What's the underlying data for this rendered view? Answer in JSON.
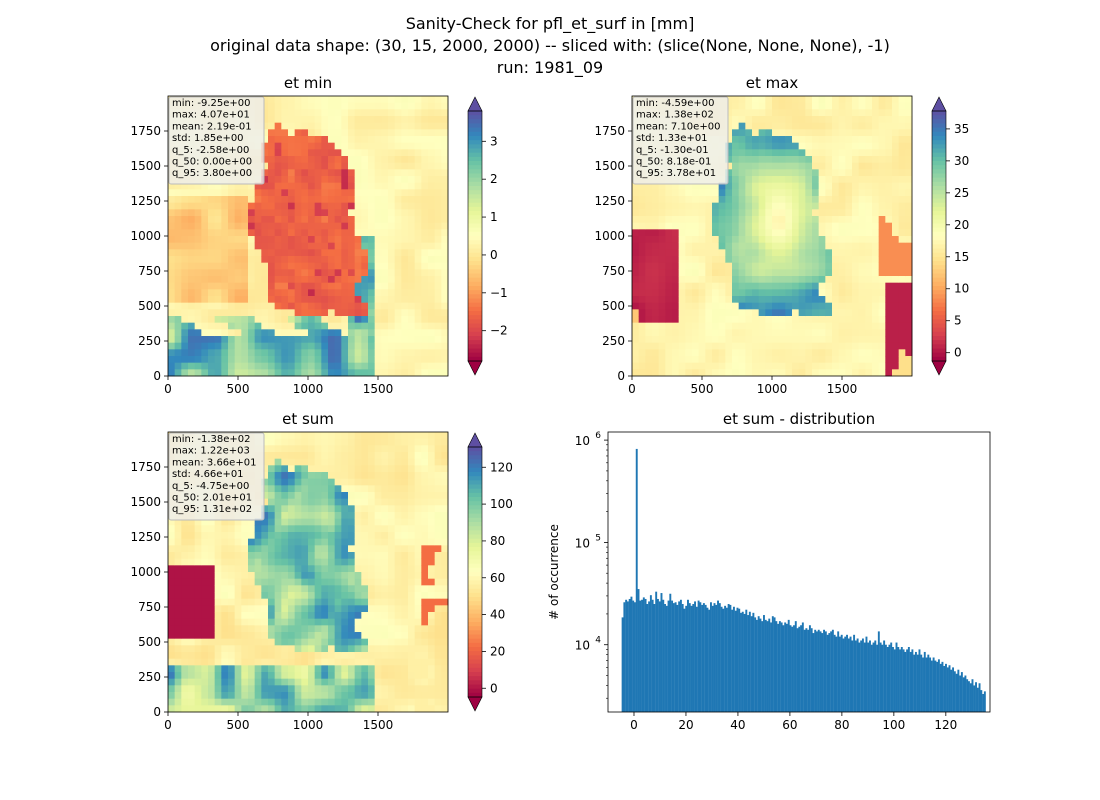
{
  "figure": {
    "title_lines": [
      "Sanity-Check for pfl_et_surf in [mm]",
      "original data shape: (30, 15, 2000, 2000) -- sliced with: (slice(None, None, None), -1)",
      "run: 1981_09"
    ]
  },
  "chart_data": [
    {
      "type": "heatmap",
      "title": "et min",
      "xlabel": "",
      "ylabel": "",
      "xlim": [
        0,
        2000
      ],
      "ylim": [
        0,
        2000
      ],
      "x_ticks": [
        "0",
        "500",
        "1000",
        "1500"
      ],
      "y_ticks": [
        "0",
        "250",
        "500",
        "750",
        "1000",
        "1250",
        "1500",
        "1750"
      ],
      "colormap": "Spectral",
      "colorbar": {
        "vmin": -2.8,
        "vmax": 3.8,
        "ticks": [
          -2,
          -1,
          0,
          1,
          2,
          3
        ],
        "tick_labels": [
          "−2",
          "−1",
          "0",
          "1",
          "2",
          "3"
        ],
        "extend": "both"
      },
      "stats": [
        "min: -9.25e+00",
        "max: 4.07e+01",
        "mean: 2.19e-01",
        "std: 1.85e+00",
        "q_5: -2.58e+00",
        "q_50: 0.00e+00",
        "q_95: 3.80e+00"
      ]
    },
    {
      "type": "heatmap",
      "title": "et max",
      "xlabel": "",
      "ylabel": "",
      "xlim": [
        0,
        2000
      ],
      "ylim": [
        0,
        2000
      ],
      "x_ticks": [
        "0",
        "500",
        "1000",
        "1500"
      ],
      "y_ticks": [
        "0",
        "250",
        "500",
        "750",
        "1000",
        "1250",
        "1500",
        "1750"
      ],
      "colormap": "Spectral",
      "colorbar": {
        "vmin": -1.3,
        "vmax": 37.8,
        "ticks": [
          0,
          5,
          10,
          15,
          20,
          25,
          30,
          35
        ],
        "tick_labels": [
          "0",
          "5",
          "10",
          "15",
          "20",
          "25",
          "30",
          "35"
        ],
        "extend": "both"
      },
      "stats": [
        "min: -4.59e+00",
        "max: 1.38e+02",
        "mean: 7.10e+00",
        "std: 1.33e+01",
        "q_5: -1.30e-01",
        "q_50: 8.18e-01",
        "q_95: 3.78e+01"
      ]
    },
    {
      "type": "heatmap",
      "title": "et sum",
      "xlabel": "",
      "ylabel": "",
      "xlim": [
        0,
        2000
      ],
      "ylim": [
        0,
        2000
      ],
      "x_ticks": [
        "0",
        "500",
        "1000",
        "1500"
      ],
      "y_ticks": [
        "0",
        "250",
        "500",
        "750",
        "1000",
        "1250",
        "1500",
        "1750"
      ],
      "colormap": "Spectral",
      "colorbar": {
        "vmin": -4.75,
        "vmax": 131,
        "ticks": [
          0,
          20,
          40,
          60,
          80,
          100,
          120
        ],
        "tick_labels": [
          "0",
          "20",
          "40",
          "60",
          "80",
          "100",
          "120"
        ],
        "extend": "both"
      },
      "stats": [
        "min: -1.38e+02",
        "max: 1.22e+03",
        "mean: 3.66e+01",
        "std: 4.66e+01",
        "q_5: -4.75e+00",
        "q_50: 2.01e+01",
        "q_95: 1.31e+02"
      ]
    },
    {
      "type": "bar",
      "title": "et sum - distribution",
      "xlabel": "",
      "ylabel": "# of occurrence",
      "xlim": [
        -10,
        137
      ],
      "ylim": [
        2200,
        1200000
      ],
      "y_scale": "log",
      "x_ticks": [
        0,
        20,
        40,
        60,
        80,
        100,
        120
      ],
      "y_ticks": [
        {
          "value": 10000,
          "base": "10",
          "exp": "4"
        },
        {
          "value": 100000,
          "base": "10",
          "exp": "5"
        },
        {
          "value": 1000000,
          "base": "10",
          "exp": "6"
        }
      ],
      "bar_color": "#1f77b4",
      "bin_start": -4.75,
      "bin_width": 0.68,
      "values": [
        18500,
        26000,
        27500,
        26500,
        28000,
        29500,
        27000,
        26000,
        820000,
        35000,
        27000,
        27500,
        29000,
        28000,
        25000,
        26500,
        30500,
        27500,
        25000,
        33000,
        28000,
        26500,
        32000,
        27500,
        25000,
        24000,
        27000,
        31500,
        27000,
        25500,
        26000,
        24500,
        26500,
        27500,
        25000,
        22500,
        24000,
        27500,
        25500,
        24000,
        25000,
        26500,
        23500,
        27000,
        26000,
        24500,
        25500,
        24500,
        23000,
        22000,
        26000,
        24000,
        25500,
        24500,
        27000,
        25500,
        23500,
        22500,
        24000,
        23000,
        25000,
        24500,
        22000,
        23500,
        21500,
        23000,
        22500,
        20500,
        21000,
        20000,
        22000,
        19500,
        21000,
        19000,
        20500,
        18500,
        17500,
        19000,
        18000,
        17000,
        19500,
        17500,
        17000,
        18000,
        16500,
        19000,
        18500,
        17000,
        16000,
        17000,
        16500,
        15500,
        16500,
        16000,
        17500,
        15500,
        15000,
        15500,
        17000,
        14500,
        15000,
        15500,
        16500,
        14000,
        14500,
        14000,
        15500,
        14500,
        13000,
        14000,
        13500,
        14000,
        13500,
        13000,
        14000,
        13500,
        12500,
        13000,
        13500,
        14000,
        12500,
        12000,
        13500,
        12000,
        12500,
        11500,
        12000,
        12500,
        11500,
        12000,
        11000,
        12500,
        11000,
        11500,
        10500,
        11000,
        11500,
        10500,
        12000,
        10500,
        11000,
        10000,
        10500,
        11000,
        10000,
        13500,
        10500,
        10000,
        11000,
        10000,
        9500,
        10000,
        10500,
        9500,
        9000,
        10500,
        9500,
        9000,
        9500,
        9000,
        8500,
        9000,
        9500,
        8500,
        9000,
        8000,
        8500,
        8000,
        9000,
        8000,
        7500,
        8500,
        7500,
        8000,
        7500,
        7000,
        7500,
        7000,
        6800,
        7200,
        6500,
        6800,
        6200,
        6500,
        6000,
        6300,
        5700,
        6000,
        5500,
        5200,
        5700,
        5000,
        5400,
        4800,
        5000,
        4600,
        4400,
        4200,
        4600,
        4000,
        4300,
        3800,
        4200,
        3600,
        3300,
        3500
      ]
    }
  ]
}
